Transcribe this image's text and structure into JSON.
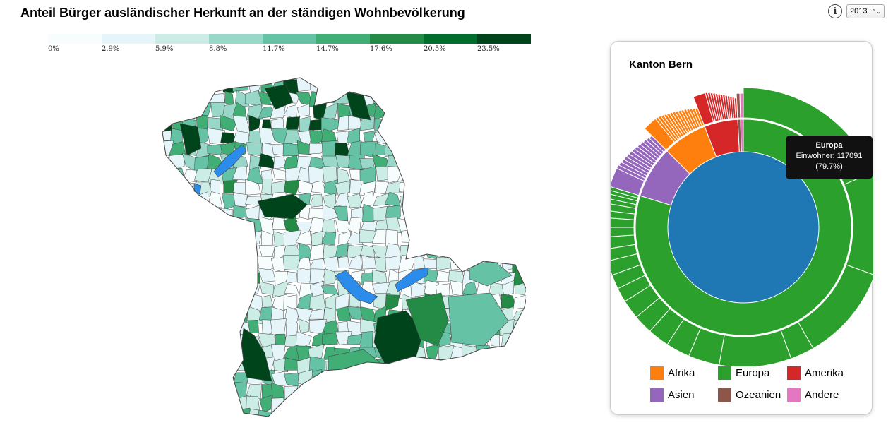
{
  "title": "Anteil Bürger ausländischer Herkunft an der ständigen Wohnbevölkerung",
  "controls": {
    "info_icon": "info-icon",
    "year": "2013",
    "year_arrows": "⌃⌄"
  },
  "scale": {
    "colors": [
      "#f7fcfd",
      "#e5f5f9",
      "#ccece6",
      "#99d8c9",
      "#66c2a4",
      "#41ae76",
      "#238b45",
      "#006d2c",
      "#00441b"
    ],
    "labels": [
      "0%",
      "2.9%",
      "5.9%",
      "8.8%",
      "11.7%",
      "14.7%",
      "17.6%",
      "20.5%",
      "23.5%"
    ]
  },
  "map": {
    "lake_color": "#2b8ceb",
    "stroke": "#444444"
  },
  "panel": {
    "title": "Kanton Bern",
    "tooltip": {
      "title": "Europa",
      "line1": "Einwohner: 117091",
      "line2": "(79.7%)"
    },
    "legend": [
      {
        "label": "Afrika",
        "color": "#ff7f0e"
      },
      {
        "label": "Europa",
        "color": "#2ca02c"
      },
      {
        "label": "Amerika",
        "color": "#d62728"
      },
      {
        "label": "Asien",
        "color": "#9467bd"
      },
      {
        "label": "Ozeanien",
        "color": "#8c564b"
      },
      {
        "label": "Andere",
        "color": "#e377c2"
      }
    ],
    "center_color": "#1f77b4"
  }
}
